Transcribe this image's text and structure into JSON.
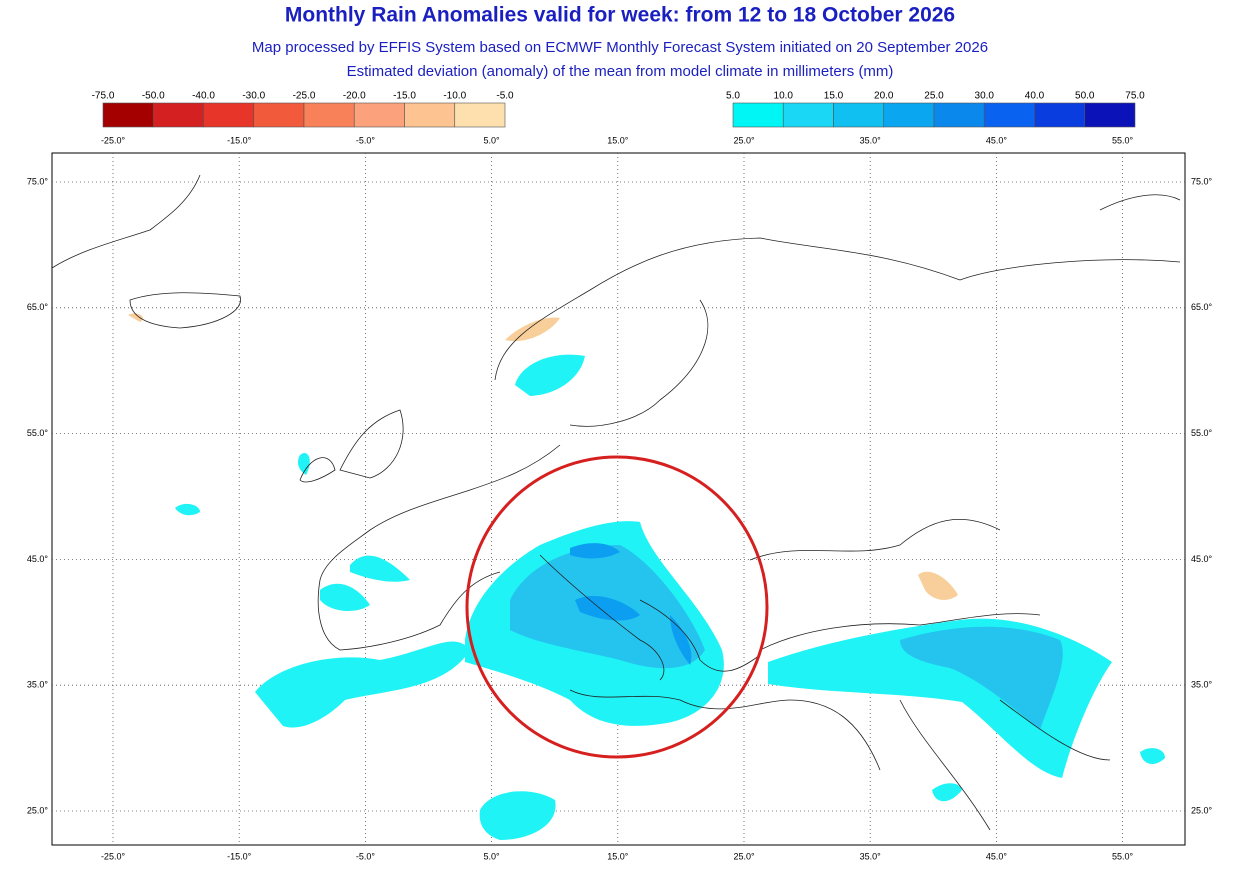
{
  "header": {
    "title": "Monthly Rain Anomalies valid for week: from 12 to 18 October 2026",
    "subtitle": "Map processed by EFFIS System based on ECMWF Monthly Forecast System initiated on 20 September 2026",
    "subtitle2": "Estimated deviation (anomaly) of the mean from model climate in millimeters (mm)"
  },
  "legend_negative": {
    "labels": [
      "-75.0",
      "-50.0",
      "-40.0",
      "-30.0",
      "-25.0",
      "-20.0",
      "-15.0",
      "-10.0",
      "-5.0"
    ],
    "colors": [
      "#a50000",
      "#d42020",
      "#e8352a",
      "#f25a3c",
      "#f8815a",
      "#fba27c",
      "#fdc391",
      "#fde0ad"
    ]
  },
  "legend_positive": {
    "labels": [
      "5.0",
      "10.0",
      "15.0",
      "20.0",
      "25.0",
      "30.0",
      "40.0",
      "50.0",
      "75.0"
    ],
    "colors": [
      "#00f5f5",
      "#1ad8f5",
      "#10c0f0",
      "#0aa6f0",
      "#0a88ec",
      "#0a63f0",
      "#0a3de0",
      "#0a12b8"
    ]
  },
  "lon_labels": [
    "-25.0°",
    "-15.0°",
    "-5.0°",
    "5.0°",
    "15.0°",
    "25.0°",
    "35.0°",
    "45.0°",
    "55.0°"
  ],
  "lat_labels": [
    "75.0°",
    "65.0°",
    "55.0°",
    "45.0°",
    "35.0°",
    "25.0°"
  ]
}
